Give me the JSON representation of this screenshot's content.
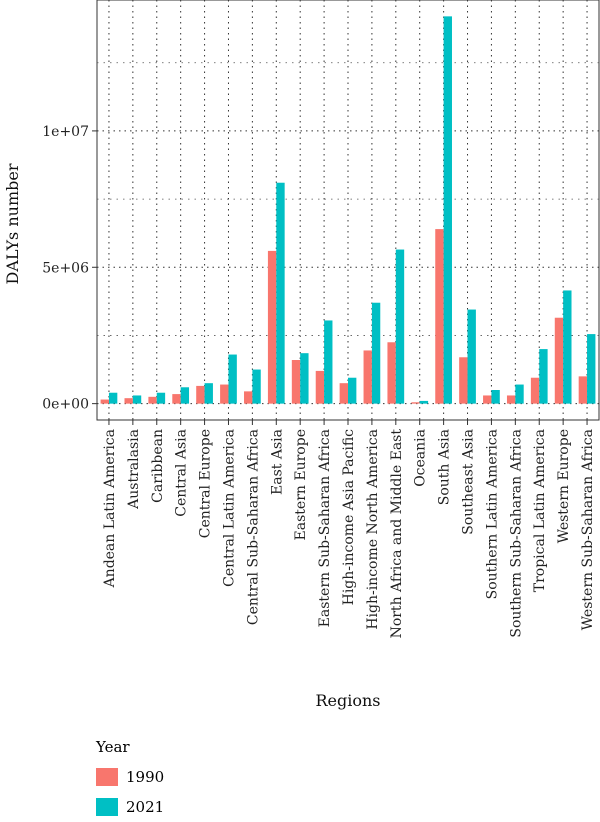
{
  "chart_data": {
    "type": "bar",
    "xlabel": "Regions",
    "ylabel": "DALYs number",
    "ylim": [
      -600000,
      14800000
    ],
    "yticks": [
      0,
      5000000,
      10000000
    ],
    "ytick_labels": [
      "0e+00",
      "5e+06",
      "1e+07"
    ],
    "grid": "dotted",
    "legend_title": "Year",
    "legend_position": "bottom-left",
    "categories": [
      "Andean Latin America",
      "Australasia",
      "Caribbean",
      "Central Asia",
      "Central Europe",
      "Central Latin America",
      "Central Sub-Saharan Africa",
      "East Asia",
      "Eastern Europe",
      "Eastern Sub-Saharan Africa",
      "High-income Asia Pacific",
      "High-income North America",
      "North Africa and Middle East",
      "Oceania",
      "South Asia",
      "Southeast Asia",
      "Southern Latin America",
      "Southern Sub-Saharan Africa",
      "Tropical Latin America",
      "Western Europe",
      "Western Sub-Saharan Africa"
    ],
    "series": [
      {
        "name": "1990",
        "color": "#F8766D",
        "values": [
          150000,
          200000,
          250000,
          350000,
          650000,
          700000,
          450000,
          5600000,
          1600000,
          1200000,
          750000,
          1950000,
          2250000,
          50000,
          6400000,
          1700000,
          300000,
          300000,
          950000,
          3150000,
          1000000
        ]
      },
      {
        "name": "2021",
        "color": "#00BFC4",
        "values": [
          400000,
          300000,
          400000,
          600000,
          750000,
          1800000,
          1250000,
          8100000,
          1850000,
          3050000,
          950000,
          3700000,
          5650000,
          100000,
          14200000,
          3450000,
          500000,
          700000,
          2000000,
          4150000,
          2550000
        ]
      }
    ]
  }
}
